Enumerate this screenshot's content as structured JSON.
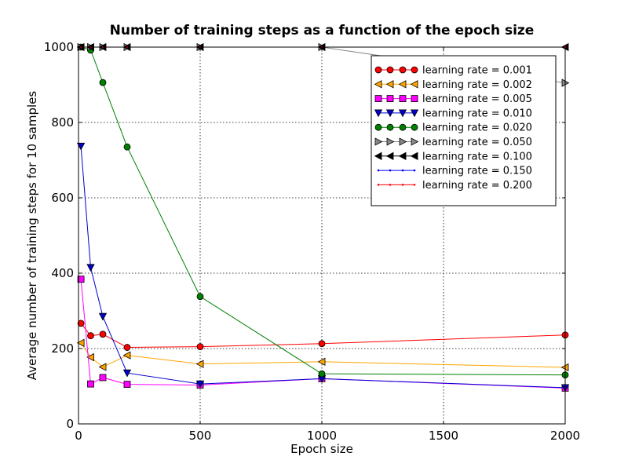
{
  "chart_data": {
    "type": "line",
    "title": "Number of training steps as a function of the epoch size",
    "xlabel": "Epoch size",
    "ylabel": "Average number of training steps for 10 samples",
    "xlim": [
      0,
      2000
    ],
    "ylim": [
      0,
      1000
    ],
    "xticks": [
      "0",
      "500",
      "1000",
      "1500",
      "2000"
    ],
    "yticks": [
      "0",
      "200",
      "400",
      "600",
      "800",
      "1000"
    ],
    "grid": true,
    "legend_position": "top-right",
    "x": [
      10,
      50,
      100,
      200,
      500,
      1000,
      2000
    ],
    "series": [
      {
        "name": "learning rate = 0.001",
        "color": "#ff0000",
        "marker": "circle",
        "values": [
          267,
          234,
          238,
          203,
          205,
          213,
          236
        ]
      },
      {
        "name": "learning rate = 0.002",
        "color": "#ffa500",
        "marker": "triangle-left",
        "values": [
          215,
          177,
          151,
          182,
          159,
          165,
          150
        ]
      },
      {
        "name": "learning rate = 0.005",
        "color": "#ff00ff",
        "marker": "square",
        "values": [
          384,
          106,
          123,
          105,
          103,
          120,
          95
        ]
      },
      {
        "name": "learning rate = 0.010",
        "color": "#0000cc",
        "marker": "triangle-down",
        "values": [
          737,
          415,
          285,
          135,
          106,
          120,
          96
        ]
      },
      {
        "name": "learning rate = 0.020",
        "color": "#008000",
        "marker": "circle",
        "values": [
          1000,
          992,
          906,
          735,
          338,
          133,
          130
        ]
      },
      {
        "name": "learning rate = 0.050",
        "color": "#888888",
        "marker": "triangle-right",
        "values": [
          1000,
          1000,
          1000,
          1000,
          1000,
          1000,
          905
        ]
      },
      {
        "name": "learning rate = 0.100",
        "color": "#000000",
        "marker": "triangle-left",
        "values": [
          1000,
          1000,
          1000,
          1000,
          1000,
          1000,
          1000
        ]
      },
      {
        "name": "learning rate = 0.150",
        "color": "#0000ff",
        "marker": "dot",
        "values": [
          1000,
          1000,
          1000,
          1000,
          1000,
          1000,
          1000
        ]
      },
      {
        "name": "learning rate = 0.200",
        "color": "#ff0000",
        "marker": "dot",
        "values": [
          1000,
          1000,
          1000,
          1000,
          1000,
          1000,
          1000
        ]
      }
    ]
  }
}
